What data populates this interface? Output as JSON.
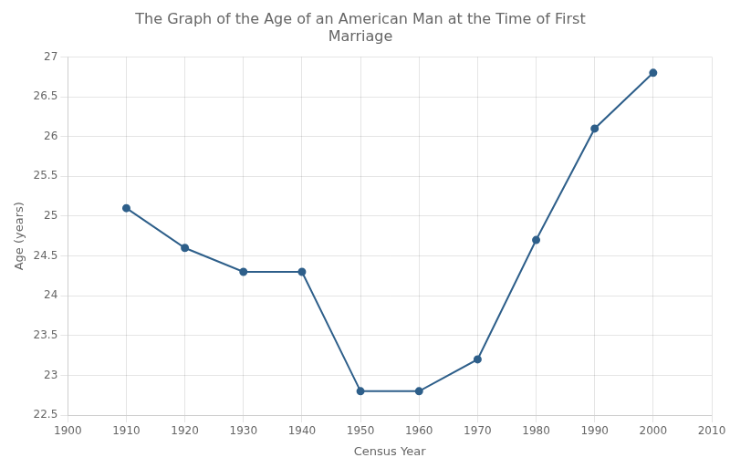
{
  "chart_data": {
    "type": "line",
    "title": "The Graph of the Age of an American Man at the Time of First\nMarriage",
    "xlabel": "Census Year",
    "ylabel": "Age (years)",
    "x": [
      1910,
      1920,
      1930,
      1940,
      1950,
      1960,
      1970,
      1980,
      1990,
      2000
    ],
    "values": [
      25.1,
      24.6,
      24.3,
      24.3,
      22.8,
      22.8,
      23.2,
      24.7,
      26.1,
      26.8
    ],
    "color": "#2e5f8a",
    "marker": "circle",
    "xlim": [
      1900,
      2010
    ],
    "ylim": [
      22.5,
      27.0
    ],
    "xticks": [
      1900,
      1910,
      1920,
      1930,
      1940,
      1950,
      1960,
      1970,
      1980,
      1990,
      2000,
      2010
    ],
    "yticks": [
      22.5,
      23.0,
      23.5,
      24.0,
      24.5,
      25.0,
      25.5,
      26.0,
      26.5,
      27.0
    ],
    "grid": true
  }
}
